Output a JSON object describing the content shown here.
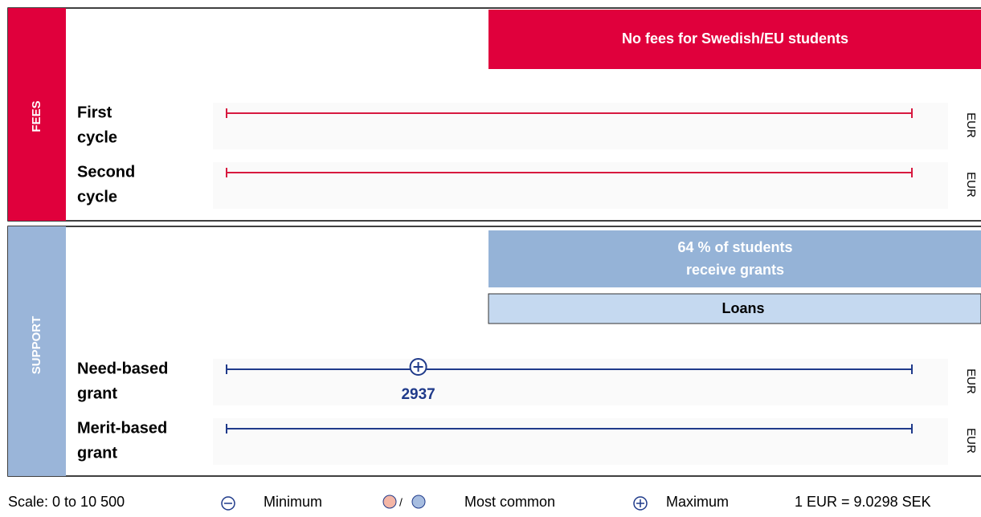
{
  "fees": {
    "label": "FEES",
    "banner": "No fees for Swedish/EU students",
    "rows": [
      {
        "lines": [
          "First",
          "cycle"
        ],
        "unit": "EUR"
      },
      {
        "lines": [
          "Second",
          "cycle"
        ],
        "unit": "EUR"
      }
    ]
  },
  "support": {
    "label": "SUPPORT",
    "banner": [
      "64 % of students",
      "receive grants"
    ],
    "loans": "Loans",
    "rows": [
      {
        "lines": [
          "Need-based",
          "grant"
        ],
        "unit": "EUR",
        "maximum": 2937
      },
      {
        "lines": [
          "Merit-based",
          "grant"
        ],
        "unit": "EUR"
      }
    ]
  },
  "legend": {
    "scale": {
      "label": "Scale: 0 to 10 500",
      "min": 0,
      "max": 10500
    },
    "minimum": "Minimum",
    "separator": "/",
    "most_common": "Most common",
    "maximum": "Maximum",
    "rate": "1 EUR = 9.0298 SEK"
  }
}
